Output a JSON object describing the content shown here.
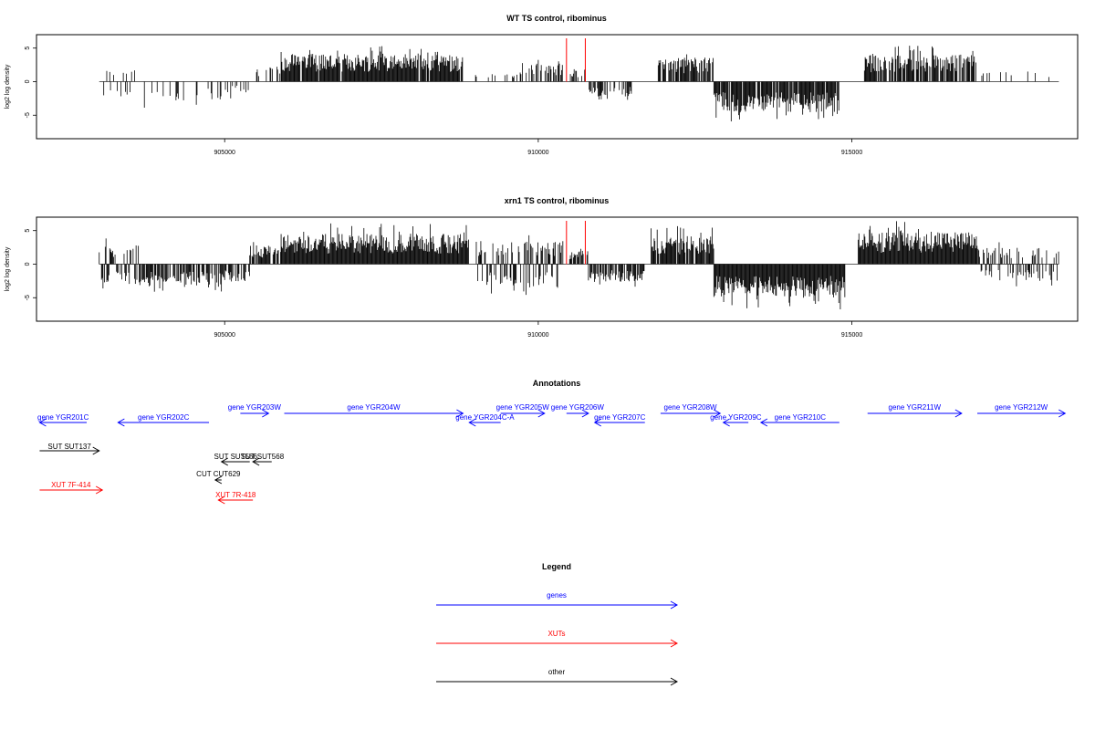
{
  "colors": {
    "gene": "#0000ff",
    "xut": "#ff0000",
    "other": "#000000",
    "marker": "#ff0000"
  },
  "chart_data": [
    {
      "type": "bar",
      "id": "wt",
      "title": "WT TS control, ribominus",
      "ylabel": "log2 log density",
      "xlim": [
        902000,
        918600
      ],
      "ylim": [
        -8.5,
        7
      ],
      "y_ticks": [
        -5,
        0,
        5
      ],
      "x_ticks": [
        905000,
        910000,
        915000
      ],
      "markers": [
        910450,
        910750
      ],
      "segments": [
        {
          "from": 903000,
          "to": 903600,
          "mode": "mixed",
          "amp": 2.2,
          "density": 0.3
        },
        {
          "from": 903600,
          "to": 904700,
          "mode": "neg",
          "amp": 3.0,
          "density": 0.18
        },
        {
          "from": 904700,
          "to": 905100,
          "mode": "neg",
          "amp": 2.8,
          "density": 0.35
        },
        {
          "from": 905100,
          "to": 905400,
          "mode": "neg",
          "amp": 1.6,
          "density": 0.2
        },
        {
          "from": 905400,
          "to": 905900,
          "mode": "pos",
          "amp": 2.0,
          "density": 0.3
        },
        {
          "from": 905900,
          "to": 908800,
          "mode": "pos",
          "amp": 4.2,
          "density": 0.95
        },
        {
          "from": 909000,
          "to": 909700,
          "mode": "pos",
          "amp": 1.5,
          "density": 0.25
        },
        {
          "from": 909700,
          "to": 910400,
          "mode": "pos",
          "amp": 2.6,
          "density": 0.5
        },
        {
          "from": 910500,
          "to": 910800,
          "mode": "pos",
          "amp": 1.8,
          "density": 0.5
        },
        {
          "from": 910800,
          "to": 911500,
          "mode": "neg",
          "amp": 2.2,
          "density": 0.5
        },
        {
          "from": 911900,
          "to": 912800,
          "mode": "pos",
          "amp": 3.6,
          "density": 0.75
        },
        {
          "from": 912800,
          "to": 914800,
          "mode": "neg",
          "amp": 4.5,
          "density": 0.9
        },
        {
          "from": 915200,
          "to": 917000,
          "mode": "pos",
          "amp": 4.0,
          "density": 0.85
        },
        {
          "from": 917000,
          "to": 918300,
          "mode": "pos",
          "amp": 1.6,
          "density": 0.1
        }
      ]
    },
    {
      "type": "bar",
      "id": "xrn1",
      "title": "xrn1 TS control, ribominus",
      "ylabel": "log2 log density",
      "xlim": [
        902000,
        918600
      ],
      "ylim": [
        -8.5,
        7
      ],
      "y_ticks": [
        -5,
        0,
        5
      ],
      "x_ticks": [
        905000,
        910000,
        915000
      ],
      "markers": [
        910450,
        910750
      ],
      "segments": [
        {
          "from": 903000,
          "to": 903700,
          "mode": "mixed",
          "amp": 3.0,
          "density": 0.8
        },
        {
          "from": 903700,
          "to": 905000,
          "mode": "neg",
          "amp": 3.2,
          "density": 0.7
        },
        {
          "from": 905000,
          "to": 905400,
          "mode": "neg",
          "amp": 2.6,
          "density": 0.5
        },
        {
          "from": 905400,
          "to": 905900,
          "mode": "pos",
          "amp": 2.8,
          "density": 0.7
        },
        {
          "from": 905900,
          "to": 908900,
          "mode": "pos",
          "amp": 4.5,
          "density": 1.0
        },
        {
          "from": 909000,
          "to": 910400,
          "mode": "mixed",
          "amp": 3.5,
          "density": 0.8
        },
        {
          "from": 910500,
          "to": 910800,
          "mode": "pos",
          "amp": 2.0,
          "density": 0.5
        },
        {
          "from": 910800,
          "to": 911700,
          "mode": "neg",
          "amp": 2.6,
          "density": 0.75
        },
        {
          "from": 911800,
          "to": 912800,
          "mode": "pos",
          "amp": 4.2,
          "density": 0.95
        },
        {
          "from": 912800,
          "to": 914900,
          "mode": "neg",
          "amp": 5.0,
          "density": 1.0
        },
        {
          "from": 915100,
          "to": 917000,
          "mode": "pos",
          "amp": 4.8,
          "density": 1.0
        },
        {
          "from": 917000,
          "to": 918300,
          "mode": "mixed",
          "amp": 2.5,
          "density": 0.7
        }
      ]
    },
    {
      "type": "annotation",
      "id": "annotations",
      "title": "Annotations",
      "xlim": [
        902000,
        918600
      ],
      "features": [
        {
          "label": "gene YGR201C",
          "start": 902050,
          "end": 902800,
          "strand": "-",
          "kind": "gene",
          "row": 1
        },
        {
          "label": "gene YGR202C",
          "start": 903300,
          "end": 904750,
          "strand": "-",
          "kind": "gene",
          "row": 1
        },
        {
          "label": "gene YGR203W",
          "start": 905250,
          "end": 905700,
          "strand": "+",
          "kind": "gene",
          "row": 0
        },
        {
          "label": "gene YGR204W",
          "start": 905950,
          "end": 908800,
          "strand": "+",
          "kind": "gene",
          "row": 0
        },
        {
          "label": "gene YGR204C-A",
          "start": 908900,
          "end": 909400,
          "strand": "-",
          "kind": "gene",
          "row": 1
        },
        {
          "label": "gene YGR205W",
          "start": 909400,
          "end": 910100,
          "strand": "+",
          "kind": "gene",
          "row": 0
        },
        {
          "label": "gene YGR206W",
          "start": 910450,
          "end": 910800,
          "strand": "+",
          "kind": "gene",
          "row": 0
        },
        {
          "label": "gene YGR207C",
          "start": 910900,
          "end": 911700,
          "strand": "-",
          "kind": "gene",
          "row": 1
        },
        {
          "label": "gene YGR208W",
          "start": 911950,
          "end": 912900,
          "strand": "+",
          "kind": "gene",
          "row": 0
        },
        {
          "label": "gene YGR209C",
          "start": 912950,
          "end": 913350,
          "strand": "-",
          "kind": "gene",
          "row": 1
        },
        {
          "label": "gene YGR210C",
          "start": 913550,
          "end": 914800,
          "strand": "-",
          "kind": "gene",
          "row": 1
        },
        {
          "label": "gene YGR211W",
          "start": 915250,
          "end": 916750,
          "strand": "+",
          "kind": "gene",
          "row": 0
        },
        {
          "label": "gene YGR212W",
          "start": 917000,
          "end": 918400,
          "strand": "+",
          "kind": "gene",
          "row": 0
        },
        {
          "label": "SUT SUT137",
          "start": 902050,
          "end": 903000,
          "strand": "+",
          "kind": "other",
          "row": 2
        },
        {
          "label": "SUT SUT566",
          "start": 904950,
          "end": 905400,
          "strand": "-",
          "kind": "other",
          "row": 3
        },
        {
          "label": "SUT SUT568",
          "start": 905450,
          "end": 905750,
          "strand": "-",
          "kind": "other",
          "row": 3
        },
        {
          "label": "CUT CUT629",
          "start": 904850,
          "end": 904950,
          "strand": "-",
          "kind": "other",
          "row": 4
        },
        {
          "label": "XUT 7F-414",
          "start": 902050,
          "end": 903050,
          "strand": "+",
          "kind": "xut",
          "row": 5
        },
        {
          "label": "XUT 7R-418",
          "start": 904900,
          "end": 905450,
          "strand": "-",
          "kind": "xut",
          "row": 6
        }
      ]
    },
    {
      "type": "legend",
      "id": "legend",
      "title": "Legend",
      "entries": [
        {
          "label": "genes",
          "kind": "gene"
        },
        {
          "label": "XUTs",
          "kind": "xut"
        },
        {
          "label": "other",
          "kind": "other"
        }
      ]
    }
  ]
}
